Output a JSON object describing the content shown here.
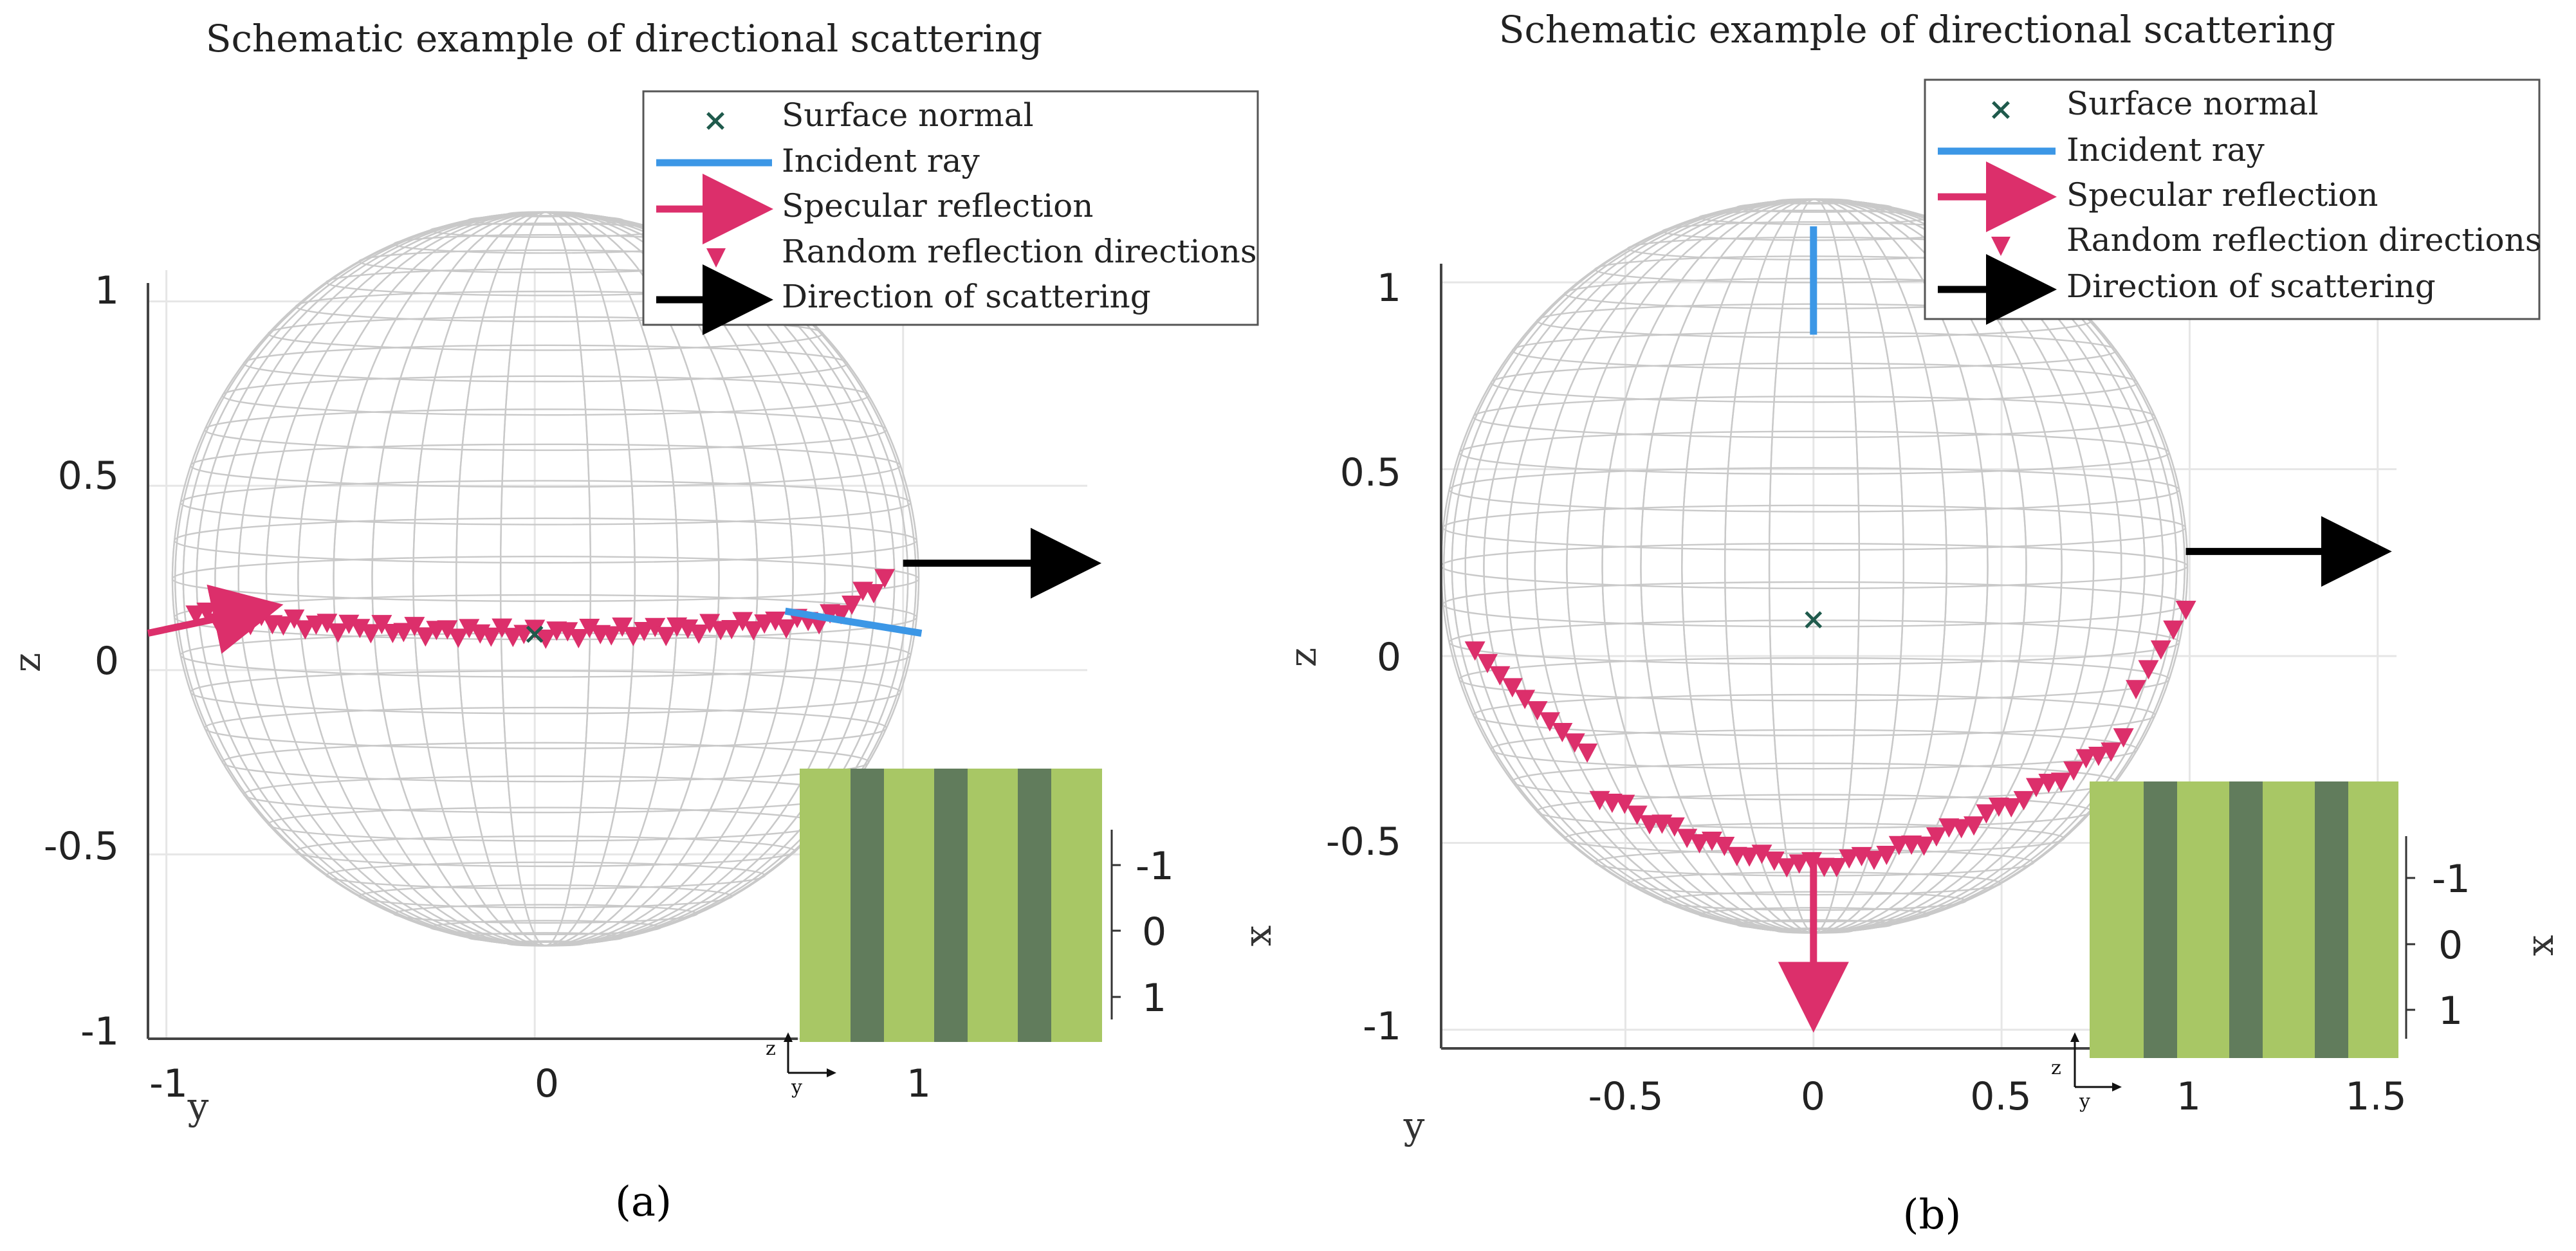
{
  "colors": {
    "surface_normal": "#1f5a4c",
    "incident": "#3c97e6",
    "specular": "#dc2f6b",
    "random": "#dc2f6b",
    "scattering": "#000000",
    "inset_light": "#a8c765",
    "inset_dark": "#617c5c",
    "sphere_wire": "#c9c9c9"
  },
  "chart_data": [
    {
      "panel": "(a)",
      "type": "scatter",
      "title": "Schematic example of directional scattering",
      "xlabel": "y",
      "ylabel": "z",
      "x_ticks": [
        "-1",
        "0",
        "1"
      ],
      "y_ticks": [
        "1",
        "0.5",
        "0",
        "-0.5",
        "-1"
      ],
      "xlim": [
        -1.05,
        1.5
      ],
      "ylim": [
        -1.0,
        1.05
      ],
      "legend": {
        "placement": "top-right",
        "entries": [
          "Surface normal",
          "Incident ray",
          "Specular reflection",
          "Random reflection directions",
          "Direction of scattering"
        ]
      },
      "surface_normal": {
        "y": 0.0,
        "z": 0.1
      },
      "incident_ray": {
        "from": [
          1.05,
          0.1
        ],
        "to": [
          0.68,
          0.16
        ]
      },
      "specular_reflection": {
        "from": [
          -1.05,
          0.1
        ],
        "to": [
          -0.72,
          0.17
        ]
      },
      "direction_of_scattering": {
        "from": [
          1.0,
          0.29
        ],
        "to": [
          1.5,
          0.29
        ]
      },
      "random_reflection_directions": {
        "y_start": -0.92,
        "y_end": 0.95,
        "count": 64,
        "arc": "nearly-flat band near z = 0.1"
      },
      "inset": {
        "xlabel": "x",
        "x_ticks": [
          "-1",
          "0",
          "1"
        ],
        "axis_glyphs": [
          "z",
          "y"
        ],
        "stripes": 3
      }
    },
    {
      "panel": "(b)",
      "type": "scatter",
      "title": "Schematic example of directional scattering",
      "xlabel": "y",
      "ylabel": "z",
      "x_ticks": [
        "-0.5",
        "0",
        "0.5",
        "1",
        "1.5"
      ],
      "y_ticks": [
        "1",
        "0.5",
        "0",
        "-0.5",
        "-1"
      ],
      "xlim": [
        -0.99,
        1.55
      ],
      "ylim": [
        -1.05,
        1.05
      ],
      "legend": {
        "placement": "top-right",
        "entries": [
          "Surface normal",
          "Incident ray",
          "Specular reflection",
          "Random reflection directions",
          "Direction of scattering"
        ]
      },
      "surface_normal": {
        "y": 0.0,
        "z": 0.1
      },
      "incident_ray": {
        "from": [
          0.0,
          1.15
        ],
        "to": [
          0.0,
          0.86
        ]
      },
      "specular_reflection": {
        "from": [
          0.0,
          -0.55
        ],
        "to": [
          0.0,
          -0.97
        ]
      },
      "direction_of_scattering": {
        "from": [
          0.99,
          0.28
        ],
        "to": [
          1.5,
          0.28
        ]
      },
      "random_reflection_directions": {
        "y_start": -0.9,
        "y_end": 0.99,
        "count": 58,
        "arc": "lower hemisphere arc"
      },
      "inset": {
        "xlabel": "x",
        "x_ticks": [
          "-1",
          "0",
          "1"
        ],
        "axis_glyphs": [
          "z",
          "y"
        ],
        "stripes": 3
      }
    }
  ]
}
